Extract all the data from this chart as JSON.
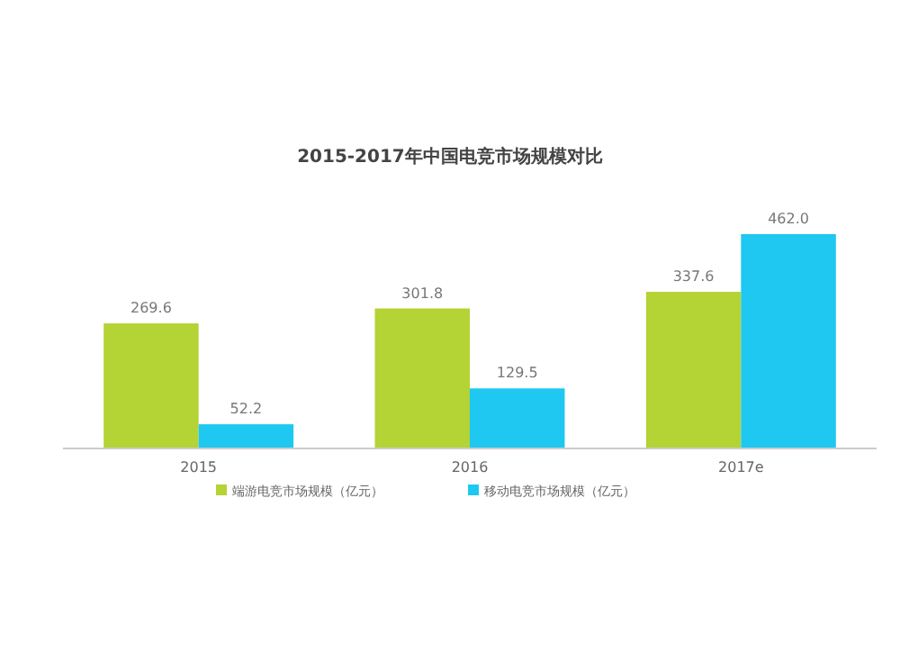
{
  "chart_data": {
    "type": "bar",
    "title": "2015-2017年中国电竞市场规模对比",
    "categories": [
      "2015",
      "2016",
      "2017e"
    ],
    "series": [
      {
        "name": "端游电竞市场规模（亿元）",
        "color": "#b4d334",
        "values": [
          269.6,
          301.8,
          337.6
        ],
        "value_labels": [
          "269.6",
          "301.8",
          "337.6"
        ]
      },
      {
        "name": "移动电竞市场规模（亿元）",
        "color": "#1ec8f0",
        "values": [
          52.2,
          129.5,
          462.0
        ],
        "value_labels": [
          "52.2",
          "129.5",
          "462.0"
        ]
      }
    ],
    "legend": "bottom"
  }
}
